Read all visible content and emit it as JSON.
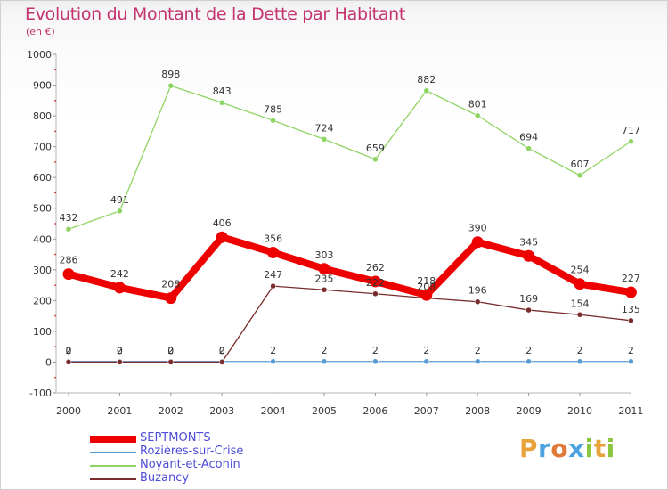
{
  "header": {
    "title": "Evolution du Montant de la Dette par Habitant",
    "subtitle": "(en €)"
  },
  "brand": {
    "text": "Proxiti",
    "letters": [
      {
        "ch": "P",
        "color": "#e8a33a"
      },
      {
        "ch": "r",
        "color": "#4da3e0"
      },
      {
        "ch": "o",
        "color": "#e07a3a"
      },
      {
        "ch": "x",
        "color": "#4da3e0"
      },
      {
        "ch": "i",
        "color": "#8cc63f"
      },
      {
        "ch": "t",
        "color": "#e8a33a"
      },
      {
        "ch": "i",
        "color": "#8cc63f"
      }
    ]
  },
  "chart_data": {
    "type": "line",
    "title": "Evolution du Montant de la Dette par Habitant",
    "ylabel": "(en €)",
    "xlabel": "",
    "x": [
      "2000",
      "2001",
      "2002",
      "2003",
      "2004",
      "2005",
      "2006",
      "2007",
      "2008",
      "2009",
      "2010",
      "2011"
    ],
    "ylim": [
      -100,
      1000
    ],
    "yticks": [
      -100,
      0,
      100,
      200,
      300,
      400,
      500,
      600,
      700,
      800,
      900,
      1000
    ],
    "grid": false,
    "legend_position": "bottom-left",
    "series": [
      {
        "name": "SEPTMONTS",
        "values": [
          286,
          242,
          208,
          406,
          356,
          303,
          262,
          218,
          390,
          345,
          254,
          227
        ],
        "color": "#ee0000",
        "style": "bold"
      },
      {
        "name": "Rozières-sur-Crise",
        "values": [
          2,
          2,
          2,
          2,
          2,
          2,
          2,
          2,
          2,
          2,
          2,
          2
        ],
        "color": "#5b9bd5",
        "style": "thin"
      },
      {
        "name": "Noyant-et-Aconin",
        "values": [
          432,
          491,
          898,
          843,
          785,
          724,
          659,
          882,
          801,
          694,
          607,
          717
        ],
        "color": "#8ed462",
        "style": "thin"
      },
      {
        "name": "Buzancy",
        "values": [
          0,
          0,
          0,
          0,
          247,
          235,
          222,
          208,
          196,
          169,
          154,
          135
        ],
        "color": "#7a2c2c",
        "style": "thin"
      }
    ],
    "data_labels": [
      {
        "series": 0,
        "labels": [
          "286",
          "242",
          "208",
          "406",
          "356",
          "303",
          "262",
          "218",
          "390",
          "345",
          "254",
          "227"
        ]
      },
      {
        "series": 1,
        "labels": [
          "2",
          "2",
          "2",
          "2",
          "2",
          "2",
          "2",
          "2",
          "2",
          "2",
          "2",
          "2"
        ]
      },
      {
        "series": 2,
        "labels": [
          "432",
          "491",
          "898",
          "843",
          "785",
          "724",
          "659",
          "882",
          "801",
          "694",
          "607",
          "717"
        ]
      },
      {
        "series": 3,
        "labels": [
          "0",
          "0",
          "0",
          "0",
          "247",
          "235",
          "222",
          "208",
          "196",
          "169",
          "154",
          "135"
        ]
      }
    ]
  }
}
